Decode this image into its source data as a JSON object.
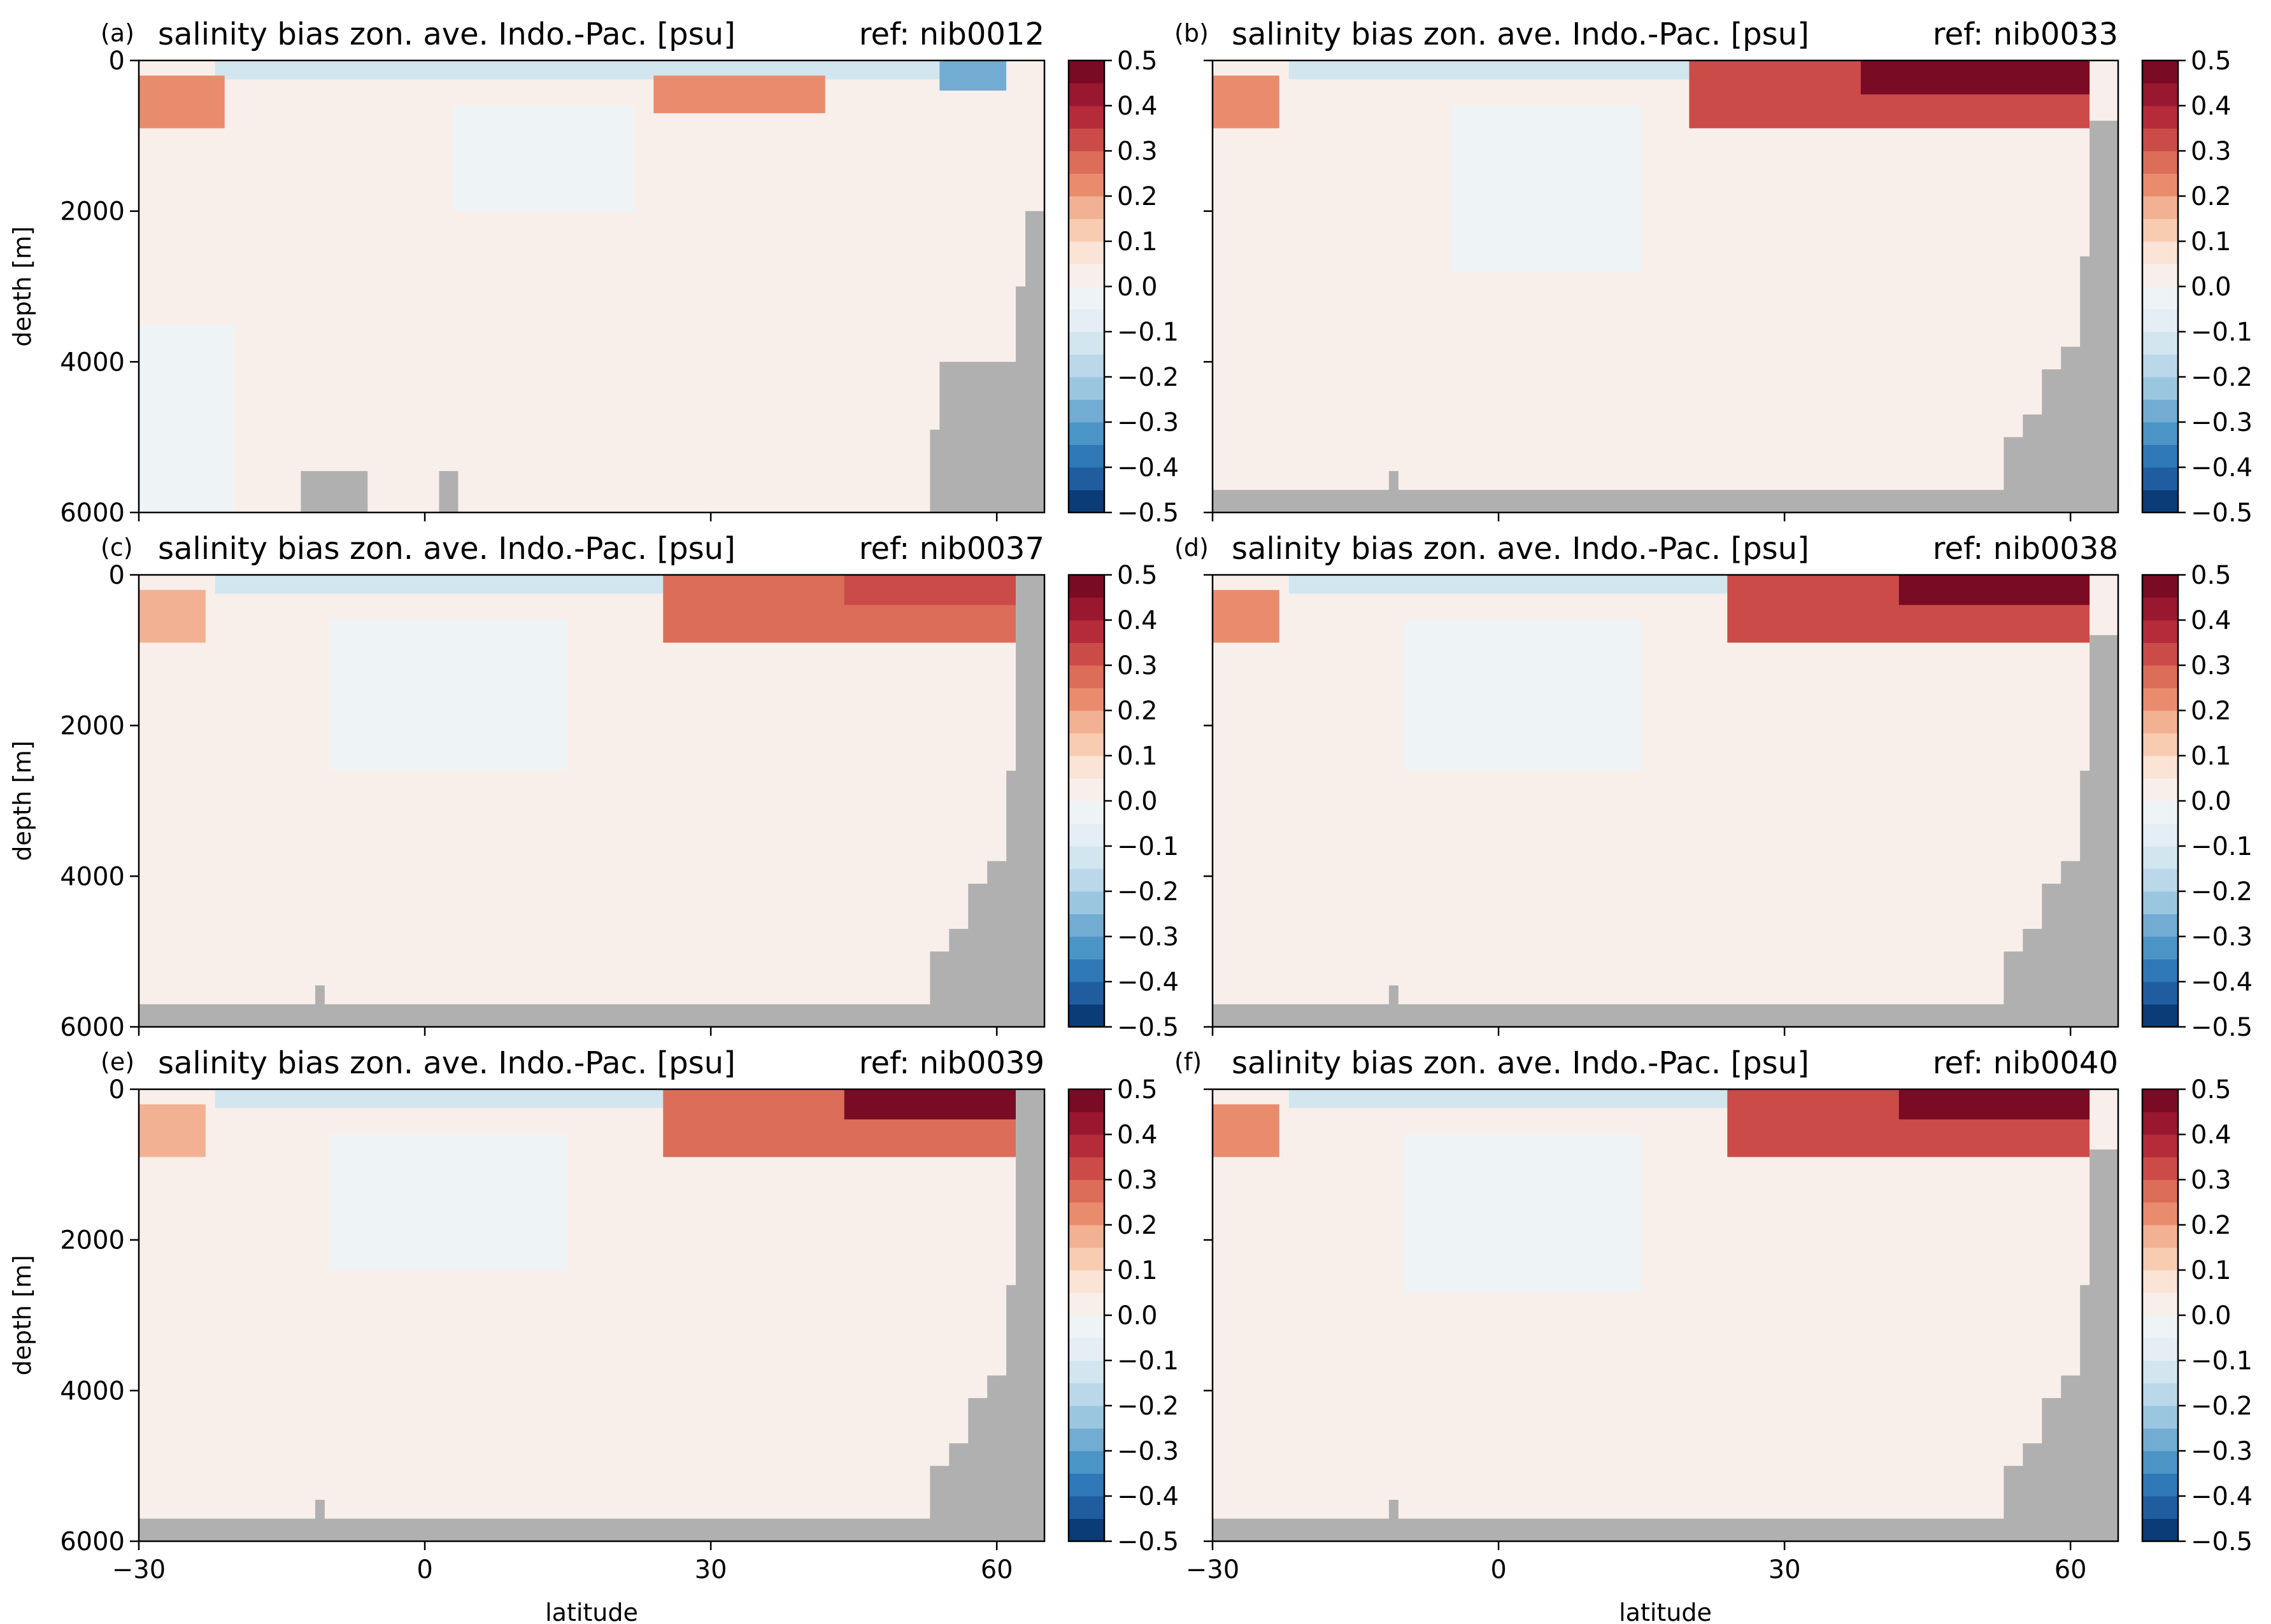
{
  "chart_data": [
    {
      "type": "heatmap",
      "panel_label": "(a)",
      "title": "salinity bias zon. ave. Indo.-Pac. [psu]",
      "ref": "ref: nib0012",
      "xlim": [
        -30,
        65
      ],
      "ylim": [
        6000,
        0
      ],
      "xticks": [],
      "yticks": [
        "0",
        "2000",
        "4000",
        "6000"
      ],
      "xlabel": "",
      "ylabel": "depth [m]",
      "colorbar_ticks": [
        "0.5",
        "0.4",
        "0.3",
        "0.2",
        "0.1",
        "0.0",
        "−0.1",
        "−0.2",
        "−0.3",
        "−0.4",
        "−0.5"
      ],
      "surface_features": [
        {
          "x0": -30,
          "x1": -21,
          "y0": 200,
          "y1": 900,
          "value": 0.22
        },
        {
          "x0": 24,
          "x1": 42,
          "y0": 200,
          "y1": 700,
          "value": 0.22
        },
        {
          "x0": 54,
          "x1": 61,
          "y0": 0,
          "y1": 400,
          "value": -0.3
        }
      ],
      "deep_features": [
        {
          "x0": -30,
          "x1": -20,
          "y0": 3500,
          "y1": 6000,
          "value": -0.05
        },
        {
          "x0": 3,
          "x1": 22,
          "y0": 600,
          "y1": 2000,
          "value": -0.05
        }
      ],
      "land": [
        {
          "lat": [
            -30,
            53,
            54,
            62,
            63,
            65
          ],
          "depth_top": [
            6000,
            4900,
            4000,
            3000,
            2000,
            0
          ]
        },
        {
          "lat": [
            -13,
            -6
          ],
          "depth_top": [
            5450,
            5450
          ]
        },
        {
          "lat": [
            1.5,
            3.5
          ],
          "depth_top": [
            5450,
            5450
          ]
        }
      ]
    },
    {
      "type": "heatmap",
      "panel_label": "(b)",
      "title": "salinity bias zon. ave. Indo.-Pac. [psu]",
      "ref": "ref: nib0033",
      "xlim": [
        -30,
        65
      ],
      "ylim": [
        6000,
        0
      ],
      "xticks": [],
      "yticks": [],
      "xlabel": "",
      "ylabel": "",
      "colorbar_ticks": [
        "0.5",
        "0.4",
        "0.3",
        "0.2",
        "0.1",
        "0.0",
        "−0.1",
        "−0.2",
        "−0.3",
        "−0.4",
        "−0.5"
      ],
      "surface_features": [
        {
          "x0": -30,
          "x1": -23,
          "y0": 200,
          "y1": 900,
          "value": 0.22
        },
        {
          "x0": 20,
          "x1": 62,
          "y0": 0,
          "y1": 900,
          "value": 0.3
        },
        {
          "x0": 38,
          "x1": 62,
          "y0": 0,
          "y1": 450,
          "value": 0.45
        }
      ],
      "deep_features": [
        {
          "x0": -5,
          "x1": 15,
          "y0": 600,
          "y1": 2800,
          "value": -0.05
        }
      ],
      "land": [
        {
          "lat": [
            -30,
            53,
            55,
            57,
            59,
            61,
            62,
            65
          ],
          "depth_top": [
            5700,
            5000,
            4700,
            4100,
            3800,
            2600,
            800,
            0
          ]
        },
        {
          "lat": [
            -11.5,
            -10.5
          ],
          "depth_top": [
            5450,
            5450
          ]
        }
      ]
    },
    {
      "type": "heatmap",
      "panel_label": "(c)",
      "title": "salinity bias zon. ave. Indo.-Pac. [psu]",
      "ref": "ref: nib0037",
      "xlim": [
        -30,
        65
      ],
      "ylim": [
        6000,
        0
      ],
      "xticks": [],
      "yticks": [
        "0",
        "2000",
        "4000",
        "6000"
      ],
      "xlabel": "",
      "ylabel": "depth [m]",
      "colorbar_ticks": [
        "0.5",
        "0.4",
        "0.3",
        "0.2",
        "0.1",
        "0.0",
        "−0.1",
        "−0.2",
        "−0.3",
        "−0.4",
        "−0.5"
      ],
      "surface_features": [
        {
          "x0": -30,
          "x1": -23,
          "y0": 200,
          "y1": 900,
          "value": 0.15
        },
        {
          "x0": 25,
          "x1": 62,
          "y0": 0,
          "y1": 900,
          "value": 0.25
        },
        {
          "x0": 44,
          "x1": 62,
          "y0": 0,
          "y1": 400,
          "value": 0.3
        }
      ],
      "deep_features": [
        {
          "x0": -10,
          "x1": 15,
          "y0": 600,
          "y1": 2600,
          "value": -0.05
        }
      ],
      "land": [
        {
          "lat": [
            -30,
            53,
            55,
            57,
            59,
            61,
            62,
            65
          ],
          "depth_top": [
            5700,
            5000,
            4700,
            4100,
            3800,
            2600,
            0,
            0
          ]
        },
        {
          "lat": [
            -11.5,
            -10.5
          ],
          "depth_top": [
            5450,
            5450
          ]
        }
      ]
    },
    {
      "type": "heatmap",
      "panel_label": "(d)",
      "title": "salinity bias zon. ave. Indo.-Pac. [psu]",
      "ref": "ref: nib0038",
      "xlim": [
        -30,
        65
      ],
      "ylim": [
        6000,
        0
      ],
      "xticks": [],
      "yticks": [],
      "xlabel": "",
      "ylabel": "",
      "colorbar_ticks": [
        "0.5",
        "0.4",
        "0.3",
        "0.2",
        "0.1",
        "0.0",
        "−0.1",
        "−0.2",
        "−0.3",
        "−0.4",
        "−0.5"
      ],
      "surface_features": [
        {
          "x0": -30,
          "x1": -23,
          "y0": 200,
          "y1": 900,
          "value": 0.22
        },
        {
          "x0": 24,
          "x1": 62,
          "y0": 0,
          "y1": 900,
          "value": 0.3
        },
        {
          "x0": 42,
          "x1": 62,
          "y0": 0,
          "y1": 400,
          "value": 0.45
        }
      ],
      "deep_features": [
        {
          "x0": -10,
          "x1": 15,
          "y0": 600,
          "y1": 2600,
          "value": -0.05
        }
      ],
      "land": [
        {
          "lat": [
            -30,
            53,
            55,
            57,
            59,
            61,
            62,
            65
          ],
          "depth_top": [
            5700,
            5000,
            4700,
            4100,
            3800,
            2600,
            800,
            0
          ]
        },
        {
          "lat": [
            -11.5,
            -10.5
          ],
          "depth_top": [
            5450,
            5450
          ]
        }
      ]
    },
    {
      "type": "heatmap",
      "panel_label": "(e)",
      "title": "salinity bias zon. ave. Indo.-Pac. [psu]",
      "ref": "ref: nib0039",
      "xlim": [
        -30,
        65
      ],
      "ylim": [
        6000,
        0
      ],
      "xticks": [
        "−30",
        "0",
        "30",
        "60"
      ],
      "yticks": [
        "0",
        "2000",
        "4000",
        "6000"
      ],
      "xlabel": "latitude",
      "ylabel": "depth [m]",
      "colorbar_ticks": [
        "0.5",
        "0.4",
        "0.3",
        "0.2",
        "0.1",
        "0.0",
        "−0.1",
        "−0.2",
        "−0.3",
        "−0.4",
        "−0.5"
      ],
      "surface_features": [
        {
          "x0": -30,
          "x1": -23,
          "y0": 200,
          "y1": 900,
          "value": 0.15
        },
        {
          "x0": 25,
          "x1": 62,
          "y0": 0,
          "y1": 900,
          "value": 0.28
        },
        {
          "x0": 44,
          "x1": 62,
          "y0": 0,
          "y1": 400,
          "value": 0.45
        }
      ],
      "deep_features": [
        {
          "x0": -10,
          "x1": 15,
          "y0": 600,
          "y1": 2400,
          "value": -0.05
        }
      ],
      "land": [
        {
          "lat": [
            -30,
            53,
            55,
            57,
            59,
            61,
            62,
            65
          ],
          "depth_top": [
            5700,
            5000,
            4700,
            4100,
            3800,
            2600,
            0,
            0
          ]
        },
        {
          "lat": [
            -11.5,
            -10.5
          ],
          "depth_top": [
            5450,
            5450
          ]
        }
      ]
    },
    {
      "type": "heatmap",
      "panel_label": "(f)",
      "title": "salinity bias zon. ave. Indo.-Pac. [psu]",
      "ref": "ref: nib0040",
      "xlim": [
        -30,
        65
      ],
      "ylim": [
        6000,
        0
      ],
      "xticks": [
        "−30",
        "0",
        "30",
        "60"
      ],
      "yticks": [],
      "xlabel": "latitude",
      "ylabel": "",
      "colorbar_ticks": [
        "0.5",
        "0.4",
        "0.3",
        "0.2",
        "0.1",
        "0.0",
        "−0.1",
        "−0.2",
        "−0.3",
        "−0.4",
        "−0.5"
      ],
      "surface_features": [
        {
          "x0": -30,
          "x1": -23,
          "y0": 200,
          "y1": 900,
          "value": 0.22
        },
        {
          "x0": 24,
          "x1": 62,
          "y0": 0,
          "y1": 900,
          "value": 0.3
        },
        {
          "x0": 42,
          "x1": 62,
          "y0": 0,
          "y1": 400,
          "value": 0.45
        }
      ],
      "deep_features": [
        {
          "x0": -10,
          "x1": 15,
          "y0": 600,
          "y1": 2700,
          "value": -0.05
        }
      ],
      "land": [
        {
          "lat": [
            -30,
            53,
            55,
            57,
            59,
            61,
            62,
            65
          ],
          "depth_top": [
            5700,
            5000,
            4700,
            4100,
            3800,
            2600,
            800,
            0
          ]
        },
        {
          "lat": [
            -11.5,
            -10.5
          ],
          "depth_top": [
            5450,
            5450
          ]
        }
      ]
    }
  ],
  "colormap": {
    "name": "RdBu_r",
    "levels": [
      -0.5,
      -0.45,
      -0.4,
      -0.35,
      -0.3,
      -0.25,
      -0.2,
      -0.15,
      -0.1,
      -0.05,
      0.0,
      0.05,
      0.1,
      0.15,
      0.2,
      0.25,
      0.3,
      0.35,
      0.4,
      0.45,
      0.5
    ],
    "colors": [
      "#0b3c78",
      "#1f5d9f",
      "#2f78b8",
      "#4b94c6",
      "#72acd3",
      "#9ac6e0",
      "#bad8ea",
      "#d2e6f0",
      "#e4eef4",
      "#eef3f6",
      "#f9efea",
      "#fbe3d5",
      "#f8ccb1",
      "#f3b193",
      "#e98c6e",
      "#dc6d59",
      "#ca4b48",
      "#b52b3a",
      "#9a1730",
      "#7a0b25"
    ],
    "land_color": "#b0b0b0"
  }
}
